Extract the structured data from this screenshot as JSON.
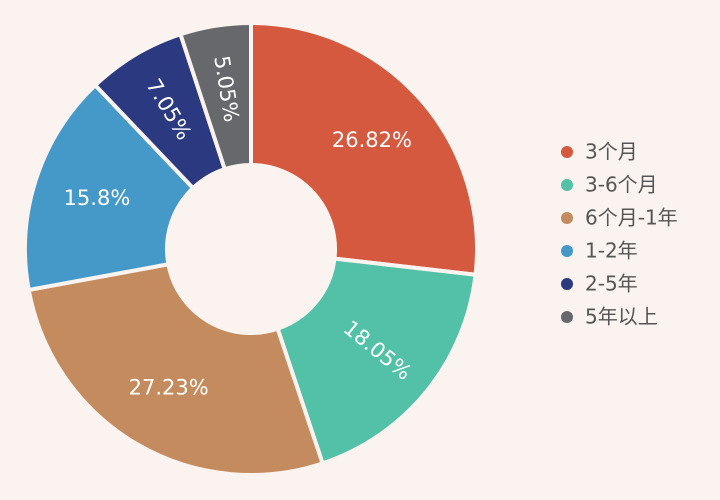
{
  "chart_data": {
    "type": "pie",
    "donut": true,
    "categories": [
      "3个月",
      "3-6个月",
      "6个月-1年",
      "1-2年",
      "2-5年",
      "5年以上"
    ],
    "values": [
      26.82,
      18.05,
      27.23,
      15.8,
      7.05,
      5.05
    ],
    "labels": [
      "26.82%",
      "18.05%",
      "27.23%",
      "15.8%",
      "7.05%",
      "5.05%"
    ],
    "colors": [
      "#d5593f",
      "#52c1a7",
      "#c48b5f",
      "#4599c9",
      "#2b3a80",
      "#66686b"
    ],
    "legend_position": "right",
    "start_angle": "12 o'clock, clockwise",
    "title": ""
  }
}
